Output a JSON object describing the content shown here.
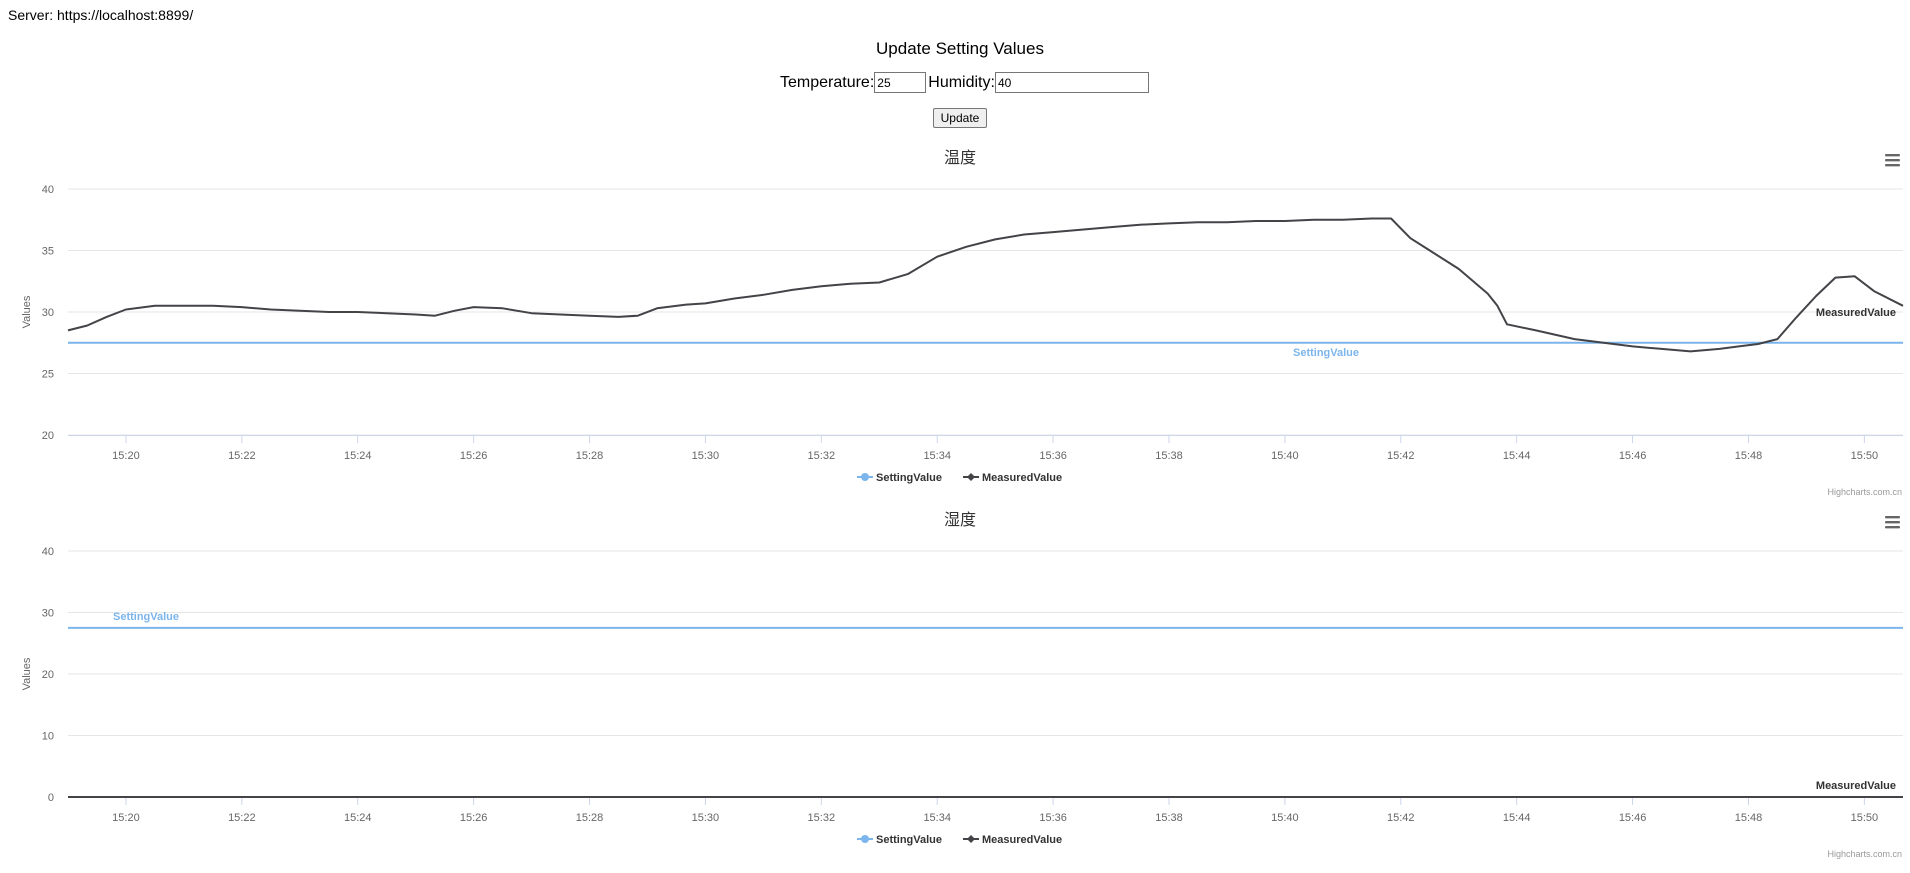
{
  "server": {
    "label": "Server: https://localhost:8899/"
  },
  "form": {
    "title": "Update Setting Values",
    "temperature_label": "Temperature:",
    "temperature_value": "25",
    "humidity_label": "Humidity:",
    "humidity_value": "40",
    "update_label": "Update"
  },
  "menu_icon": "hamburger-menu-icon",
  "chart_data": [
    {
      "type": "line",
      "title": "温度",
      "ylabel": "Values",
      "xlabel": "",
      "ylim": [
        20,
        40
      ],
      "yticks": [
        "40",
        "35",
        "30",
        "25",
        "20"
      ],
      "xticks": [
        "15:20",
        "15:22",
        "15:24",
        "15:26",
        "15:28",
        "15:30",
        "15:32",
        "15:34",
        "15:36",
        "15:38",
        "15:40",
        "15:42",
        "15:44",
        "15:46",
        "15:48",
        "15:50"
      ],
      "xrange": [
        "15:19",
        "15:50:40"
      ],
      "grid": true,
      "legend": "bottom-center",
      "series": [
        {
          "name": "SettingValue",
          "color": "#7cb5ec",
          "x": [
            "15:19",
            "15:50:40"
          ],
          "values": [
            27.5,
            27.5
          ]
        },
        {
          "name": "MeasuredValue",
          "color": "#434348",
          "x": [
            "15:19:00",
            "15:19:20",
            "15:19:40",
            "15:20:00",
            "15:20:30",
            "15:21:00",
            "15:21:30",
            "15:22:00",
            "15:22:30",
            "15:23:00",
            "15:23:30",
            "15:24:00",
            "15:24:30",
            "15:25:00",
            "15:25:20",
            "15:25:40",
            "15:26:00",
            "15:26:30",
            "15:27:00",
            "15:27:30",
            "15:28:00",
            "15:28:30",
            "15:28:50",
            "15:29:10",
            "15:29:40",
            "15:30:00",
            "15:30:30",
            "15:31:00",
            "15:31:30",
            "15:32:00",
            "15:32:30",
            "15:33:00",
            "15:33:30",
            "15:34:00",
            "15:34:30",
            "15:35:00",
            "15:35:30",
            "15:36:00",
            "15:36:30",
            "15:37:00",
            "15:37:30",
            "15:38:00",
            "15:38:30",
            "15:39:00",
            "15:39:30",
            "15:40:00",
            "15:40:30",
            "15:41:00",
            "15:41:30",
            "15:41:50",
            "15:42:10",
            "15:42:30",
            "15:43:00",
            "15:43:30",
            "15:43:40",
            "15:43:50",
            "15:44:20",
            "15:45:00",
            "15:45:30",
            "15:46:00",
            "15:46:30",
            "15:47:00",
            "15:47:30",
            "15:47:50",
            "15:48:10",
            "15:48:30",
            "15:48:50",
            "15:49:10",
            "15:49:30",
            "15:49:50",
            "15:50:10",
            "15:50:40"
          ],
          "values": [
            28.5,
            28.9,
            29.6,
            30.2,
            30.5,
            30.5,
            30.5,
            30.4,
            30.2,
            30.1,
            30.0,
            30.0,
            29.9,
            29.8,
            29.7,
            30.1,
            30.4,
            30.3,
            29.9,
            29.8,
            29.7,
            29.6,
            29.7,
            30.3,
            30.6,
            30.7,
            31.1,
            31.4,
            31.8,
            32.1,
            32.3,
            32.4,
            33.1,
            34.5,
            35.3,
            35.9,
            36.3,
            36.5,
            36.7,
            36.9,
            37.1,
            37.2,
            37.3,
            37.3,
            37.4,
            37.4,
            37.5,
            37.5,
            37.6,
            37.6,
            36.0,
            35.0,
            33.5,
            31.5,
            30.5,
            29.0,
            28.5,
            27.8,
            27.5,
            27.2,
            27.0,
            26.8,
            27.0,
            27.2,
            27.4,
            27.8,
            29.6,
            31.3,
            32.8,
            32.9,
            31.7,
            30.5
          ]
        }
      ],
      "annotations": [
        "SettingValue",
        "MeasuredValue"
      ],
      "credit": "Highcharts.com.cn"
    },
    {
      "type": "line",
      "title": "湿度",
      "ylabel": "Values",
      "xlabel": "",
      "ylim": [
        0,
        40
      ],
      "yticks": [
        "40",
        "30",
        "20",
        "10",
        "0"
      ],
      "xticks": [
        "15:20",
        "15:22",
        "15:24",
        "15:26",
        "15:28",
        "15:30",
        "15:32",
        "15:34",
        "15:36",
        "15:38",
        "15:40",
        "15:42",
        "15:44",
        "15:46",
        "15:48",
        "15:50"
      ],
      "xrange": [
        "15:19",
        "15:50:40"
      ],
      "grid": true,
      "legend": "bottom-center",
      "series": [
        {
          "name": "SettingValue",
          "color": "#7cb5ec",
          "x": [
            "15:19",
            "15:50:40"
          ],
          "values": [
            27.5,
            27.5
          ]
        },
        {
          "name": "MeasuredValue",
          "color": "#434348",
          "x": [
            "15:19",
            "15:50:40"
          ],
          "values": [
            0,
            0
          ]
        }
      ],
      "annotations": [
        "SettingValue",
        "MeasuredValue"
      ],
      "credit": "Highcharts.com.cn"
    }
  ]
}
